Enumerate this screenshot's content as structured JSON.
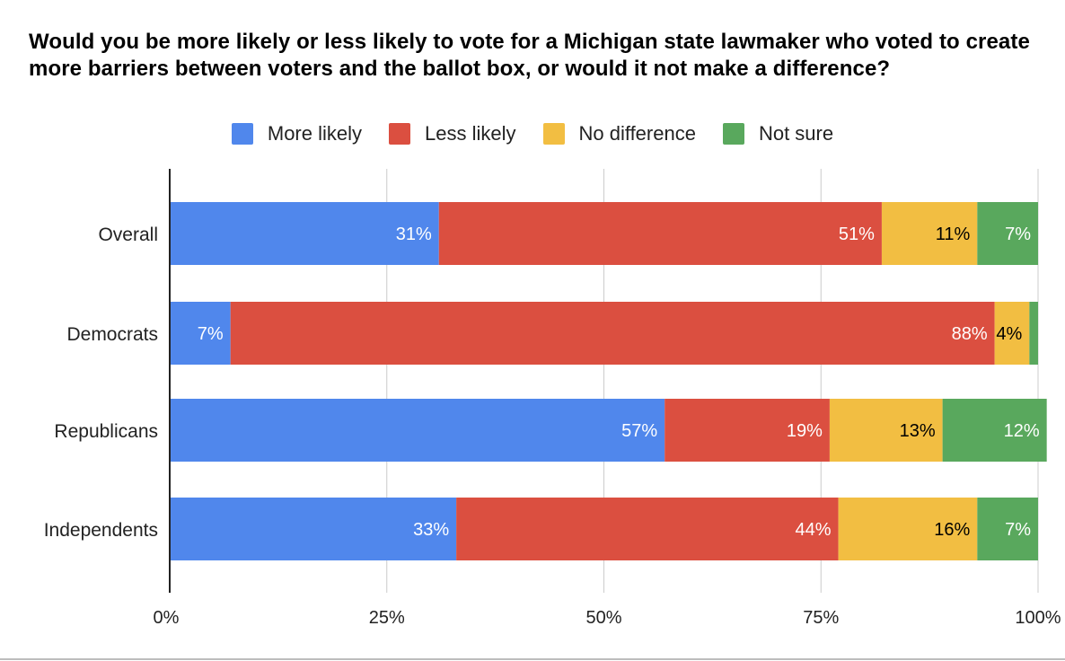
{
  "chart_data": {
    "type": "bar",
    "orientation": "horizontal",
    "stacked": true,
    "title": "Would you be more likely or less likely to vote for a Michigan state lawmaker who voted to create more barriers between voters and the ballot box, or would it not make a difference?",
    "categories": [
      "Overall",
      "Democrats",
      "Republicans",
      "Independents"
    ],
    "series": [
      {
        "name": "More likely",
        "color": "#5087EC",
        "label_color": "#ffffff",
        "values": [
          31,
          7,
          57,
          33
        ],
        "labels": [
          "31%",
          "7%",
          "57%",
          "33%"
        ]
      },
      {
        "name": "Less likely",
        "color": "#DB4F40",
        "label_color": "#ffffff",
        "values": [
          51,
          88,
          19,
          44
        ],
        "labels": [
          "51%",
          "88%",
          "19%",
          "44%"
        ]
      },
      {
        "name": "No difference",
        "color": "#F2BE42",
        "label_color": "#000000",
        "values": [
          11,
          4,
          13,
          16
        ],
        "labels": [
          "11%",
          "4%",
          "13%",
          "16%"
        ]
      },
      {
        "name": "Not sure",
        "color": "#59A85D",
        "label_color": "#ffffff",
        "values": [
          7,
          1,
          12,
          7
        ],
        "labels": [
          "7%",
          "",
          "12%",
          "7%"
        ]
      }
    ],
    "x_ticks": [
      "0%",
      "25%",
      "50%",
      "75%",
      "100%"
    ],
    "xlim": [
      0,
      100
    ],
    "legend_position": "top",
    "grid": true
  }
}
